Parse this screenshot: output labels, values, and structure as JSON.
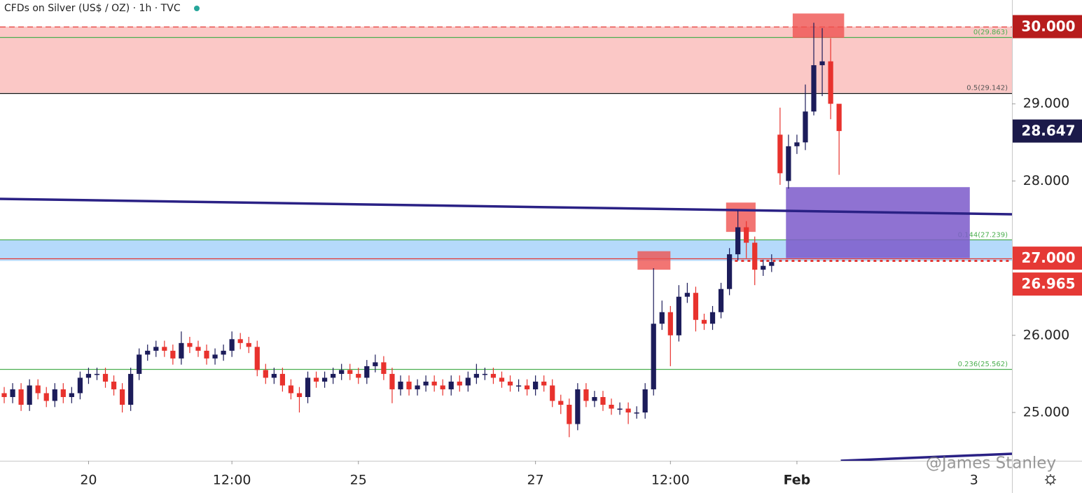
{
  "chart_data": {
    "type": "candlestick",
    "title": "CFDs on Silver (US$ / OZ) · 1h · TVC",
    "watermark": "@James Stanley",
    "xlim": [
      -0.5,
      119.5
    ],
    "xticks": [
      {
        "value": 10,
        "label": "20"
      },
      {
        "value": 27,
        "label": "12:00"
      },
      {
        "value": 42,
        "label": "25"
      },
      {
        "value": 63,
        "label": "27"
      },
      {
        "value": 79,
        "label": "12:00"
      },
      {
        "value": 94,
        "label": "Feb"
      },
      {
        "value": 115,
        "label": "3"
      }
    ],
    "ylim": [
      24.374,
      30.345
    ],
    "yticks": [
      {
        "value": 25,
        "label": "25.000"
      },
      {
        "value": 26,
        "label": "26.000"
      },
      {
        "value": 28,
        "label": "28.000"
      },
      {
        "value": 29,
        "label": "29.000"
      }
    ],
    "up_color": "#1c1c5a",
    "down_color": "#e8322d",
    "open": [
      25.25,
      25.2,
      25.3,
      25.1,
      25.35,
      25.25,
      25.15,
      25.3,
      25.2,
      25.25,
      25.45,
      25.5,
      25.5,
      25.4,
      25.3,
      25.1,
      25.5,
      25.75,
      25.8,
      25.85,
      25.8,
      25.7,
      25.9,
      25.85,
      25.8,
      25.7,
      25.75,
      25.8,
      25.95,
      25.9,
      25.85,
      25.55,
      25.45,
      25.5,
      25.35,
      25.25,
      25.2,
      25.45,
      25.4,
      25.45,
      25.5,
      25.55,
      25.5,
      25.45,
      25.6,
      25.65,
      25.5,
      25.3,
      25.4,
      25.3,
      25.35,
      25.4,
      25.35,
      25.3,
      25.4,
      25.35,
      25.45,
      25.5,
      25.5,
      25.45,
      25.4,
      25.35,
      25.35,
      25.3,
      25.4,
      25.35,
      25.15,
      25.1,
      24.85,
      25.3,
      25.15,
      25.2,
      25.1,
      25.05,
      25.05,
      25.0,
      25.0,
      25.3,
      26.15,
      26.3,
      26.0,
      26.5,
      26.55,
      26.2,
      26.15,
      26.3,
      26.6,
      27.05,
      27.4,
      27.2,
      26.85,
      26.9,
      28.6,
      28.0,
      28.45,
      28.5,
      28.9,
      29.5,
      29.55,
      29.0
    ],
    "high": [
      25.33,
      25.38,
      25.38,
      25.43,
      25.43,
      25.33,
      25.38,
      25.38,
      25.33,
      25.53,
      25.58,
      25.58,
      25.58,
      25.48,
      25.38,
      25.58,
      25.83,
      25.88,
      25.93,
      25.93,
      25.88,
      26.05,
      25.98,
      25.93,
      25.88,
      25.83,
      25.88,
      26.05,
      26.03,
      25.98,
      25.93,
      25.63,
      25.58,
      25.58,
      25.43,
      25.33,
      25.53,
      25.53,
      25.53,
      25.58,
      25.63,
      25.63,
      25.58,
      25.68,
      25.75,
      25.73,
      25.58,
      25.48,
      25.48,
      25.43,
      25.48,
      25.48,
      25.43,
      25.48,
      25.48,
      25.53,
      25.63,
      25.58,
      25.58,
      25.53,
      25.48,
      25.43,
      25.43,
      25.48,
      25.48,
      25.43,
      25.23,
      25.18,
      25.38,
      25.38,
      25.28,
      25.28,
      25.18,
      25.13,
      25.13,
      25.08,
      25.38,
      26.87,
      26.45,
      26.38,
      26.65,
      26.68,
      26.63,
      26.28,
      26.38,
      26.68,
      27.13,
      27.62,
      27.48,
      27.28,
      26.98,
      27.05,
      28.95,
      28.6,
      28.6,
      29.25,
      30.05,
      29.98,
      29.85,
      28.95
    ],
    "low": [
      25.12,
      25.12,
      25.02,
      25.02,
      25.17,
      25.07,
      25.07,
      25.12,
      25.12,
      25.17,
      25.37,
      25.42,
      25.32,
      25.22,
      25.0,
      25.02,
      25.42,
      25.67,
      25.72,
      25.72,
      25.62,
      25.62,
      25.77,
      25.72,
      25.62,
      25.62,
      25.67,
      25.72,
      25.82,
      25.77,
      25.47,
      25.37,
      25.37,
      25.27,
      25.17,
      25.0,
      25.12,
      25.32,
      25.32,
      25.37,
      25.42,
      25.42,
      25.37,
      25.37,
      25.52,
      25.42,
      25.12,
      25.22,
      25.22,
      25.22,
      25.27,
      25.27,
      25.22,
      25.22,
      25.27,
      25.27,
      25.37,
      25.42,
      25.37,
      25.32,
      25.27,
      25.27,
      25.22,
      25.22,
      25.27,
      25.07,
      24.98,
      24.68,
      24.77,
      25.07,
      25.07,
      25.02,
      24.97,
      24.97,
      24.85,
      24.92,
      24.92,
      25.22,
      26.07,
      25.6,
      25.92,
      26.42,
      26.05,
      26.07,
      26.07,
      26.22,
      26.52,
      26.97,
      27.0,
      26.65,
      26.77,
      26.82,
      27.95,
      27.9,
      28.35,
      28.4,
      28.85,
      29.1,
      28.8,
      28.08
    ],
    "close": [
      25.2,
      25.3,
      25.1,
      25.35,
      25.25,
      25.15,
      25.3,
      25.2,
      25.25,
      25.45,
      25.5,
      25.5,
      25.4,
      25.3,
      25.1,
      25.5,
      25.75,
      25.8,
      25.85,
      25.8,
      25.7,
      25.9,
      25.85,
      25.8,
      25.7,
      25.75,
      25.8,
      25.95,
      25.9,
      25.85,
      25.55,
      25.45,
      25.5,
      25.35,
      25.25,
      25.2,
      25.45,
      25.4,
      25.45,
      25.5,
      25.55,
      25.5,
      25.45,
      25.6,
      25.65,
      25.5,
      25.3,
      25.4,
      25.3,
      25.35,
      25.4,
      25.35,
      25.3,
      25.4,
      25.35,
      25.45,
      25.5,
      25.5,
      25.45,
      25.4,
      25.35,
      25.35,
      25.3,
      25.4,
      25.35,
      25.15,
      25.1,
      24.85,
      25.3,
      25.15,
      25.2,
      25.1,
      25.05,
      25.05,
      25.0,
      25.0,
      25.3,
      26.15,
      26.3,
      26.0,
      26.5,
      26.55,
      26.2,
      26.15,
      26.3,
      26.6,
      27.05,
      27.4,
      27.2,
      26.85,
      26.9,
      26.95,
      28.1,
      28.45,
      28.5,
      28.9,
      29.5,
      29.55,
      29.0,
      28.647
    ],
    "zones": [
      {
        "from": 29.142,
        "to": 30,
        "color": "#fbc8c6"
      },
      {
        "from": 26.965,
        "to": 27.239,
        "color": "#b5dafb"
      }
    ],
    "levels": [
      {
        "value": 30,
        "color": "#e53935",
        "style": "dashed"
      },
      {
        "value": 29.863,
        "color": "#4caf50",
        "style": "solid"
      },
      {
        "value": 29.142,
        "color": "#111111",
        "style": "solid"
      },
      {
        "value": 27.239,
        "color": "#4caf50",
        "style": "solid"
      },
      {
        "value": 27,
        "color": "#e53935",
        "style": "solid"
      },
      {
        "value": 26.965,
        "color": "#e53935",
        "style": "dotted",
        "from": 85.9
      },
      {
        "value": 25.562,
        "color": "#4caf50",
        "style": "solid"
      }
    ],
    "fib_labels": [
      {
        "value": 29.863,
        "label": "0(29.863)",
        "color": "#4caf50"
      },
      {
        "value": 29.142,
        "label": "0.5(29.142)",
        "color": "#555555"
      },
      {
        "value": 27.239,
        "label": "0.144(27.239)",
        "color": "#4caf50"
      },
      {
        "value": 25.562,
        "label": "0.236(25.562)",
        "color": "#4caf50"
      }
    ],
    "boxes": [
      {
        "x0": 92.7,
        "x1": 114.5,
        "y0": 27.0,
        "y1": 27.92,
        "color": "#7e5ccbdd"
      },
      {
        "x0": 93.5,
        "x1": 99.6,
        "y0": 29.855,
        "y1": 30.17,
        "color": "#ef5350cc"
      },
      {
        "x0": 85.6,
        "x1": 89.1,
        "y0": 27.34,
        "y1": 27.72,
        "color": "#ef5350cc"
      },
      {
        "x0": 75.1,
        "x1": 79.0,
        "y0": 26.85,
        "y1": 27.09,
        "color": "#ef5350cc"
      }
    ],
    "trendlines": [
      {
        "x": [
          -0.5,
          119.5
        ],
        "y": [
          27.768,
          27.568
        ],
        "color": "#2a2185"
      },
      {
        "x": [
          99.2,
          119.5
        ],
        "y": [
          24.374,
          24.465
        ],
        "color": "#2a2185"
      }
    ],
    "price_markers": [
      {
        "value": 30,
        "label": "30.000",
        "color": "#b71c1c"
      },
      {
        "value": 28.647,
        "label": "28.647",
        "color": "#1b1a4a"
      },
      {
        "value": 27,
        "label": "27.000",
        "color": "#e53935"
      },
      {
        "value": 26.965,
        "label": "26.965",
        "color": "#e53935"
      }
    ]
  }
}
